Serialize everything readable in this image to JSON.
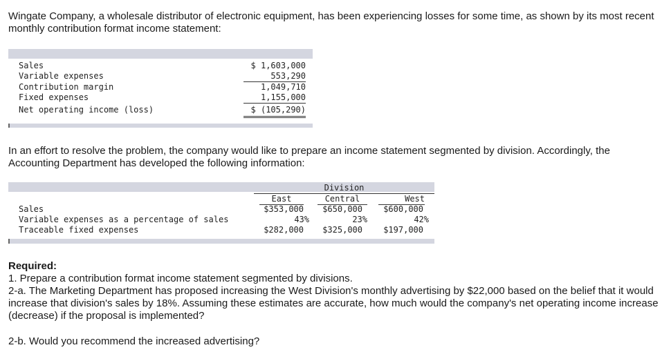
{
  "intro": "Wingate Company, a wholesale distributor of electronic equipment, has been experiencing losses for some time, as shown by its most recent monthly contribution format income statement:",
  "income_statement": {
    "rows": [
      {
        "label": "Sales",
        "value": "$ 1,603,000"
      },
      {
        "label": "Variable expenses",
        "value": "553,290"
      },
      {
        "label": "Contribution margin",
        "value": "1,049,710"
      },
      {
        "label": "Fixed expenses",
        "value": "1,155,000"
      },
      {
        "label": "Net operating income (loss)",
        "value": "$ (105,290)"
      }
    ]
  },
  "middle_text": "In an effort to resolve the problem, the company would like to prepare an income statement segmented by division. Accordingly, the Accounting Department has developed the following information:",
  "division_table": {
    "group_header": "Division",
    "columns": [
      "East",
      "Central",
      "West"
    ],
    "rows": [
      {
        "label": "Sales",
        "values": [
          "$353,000",
          "$650,000",
          "$600,000"
        ]
      },
      {
        "label": "Variable expenses as a percentage of sales",
        "values": [
          "43%",
          "23%",
          "42%"
        ]
      },
      {
        "label": "Traceable fixed expenses",
        "values": [
          "$282,000",
          "$325,000",
          "$197,000"
        ]
      }
    ]
  },
  "required": {
    "heading": "Required:",
    "item1": "1. Prepare a contribution format income statement segmented by divisions.",
    "item2a": "2-a. The Marketing Department has proposed increasing the West Division's monthly advertising by $22,000 based on the belief that it would increase that division's sales by 18%. Assuming these estimates are accurate, how much would the company's net operating income increase (decrease) if the proposal is implemented?",
    "item2b": "2-b. Would you recommend the increased advertising?"
  }
}
